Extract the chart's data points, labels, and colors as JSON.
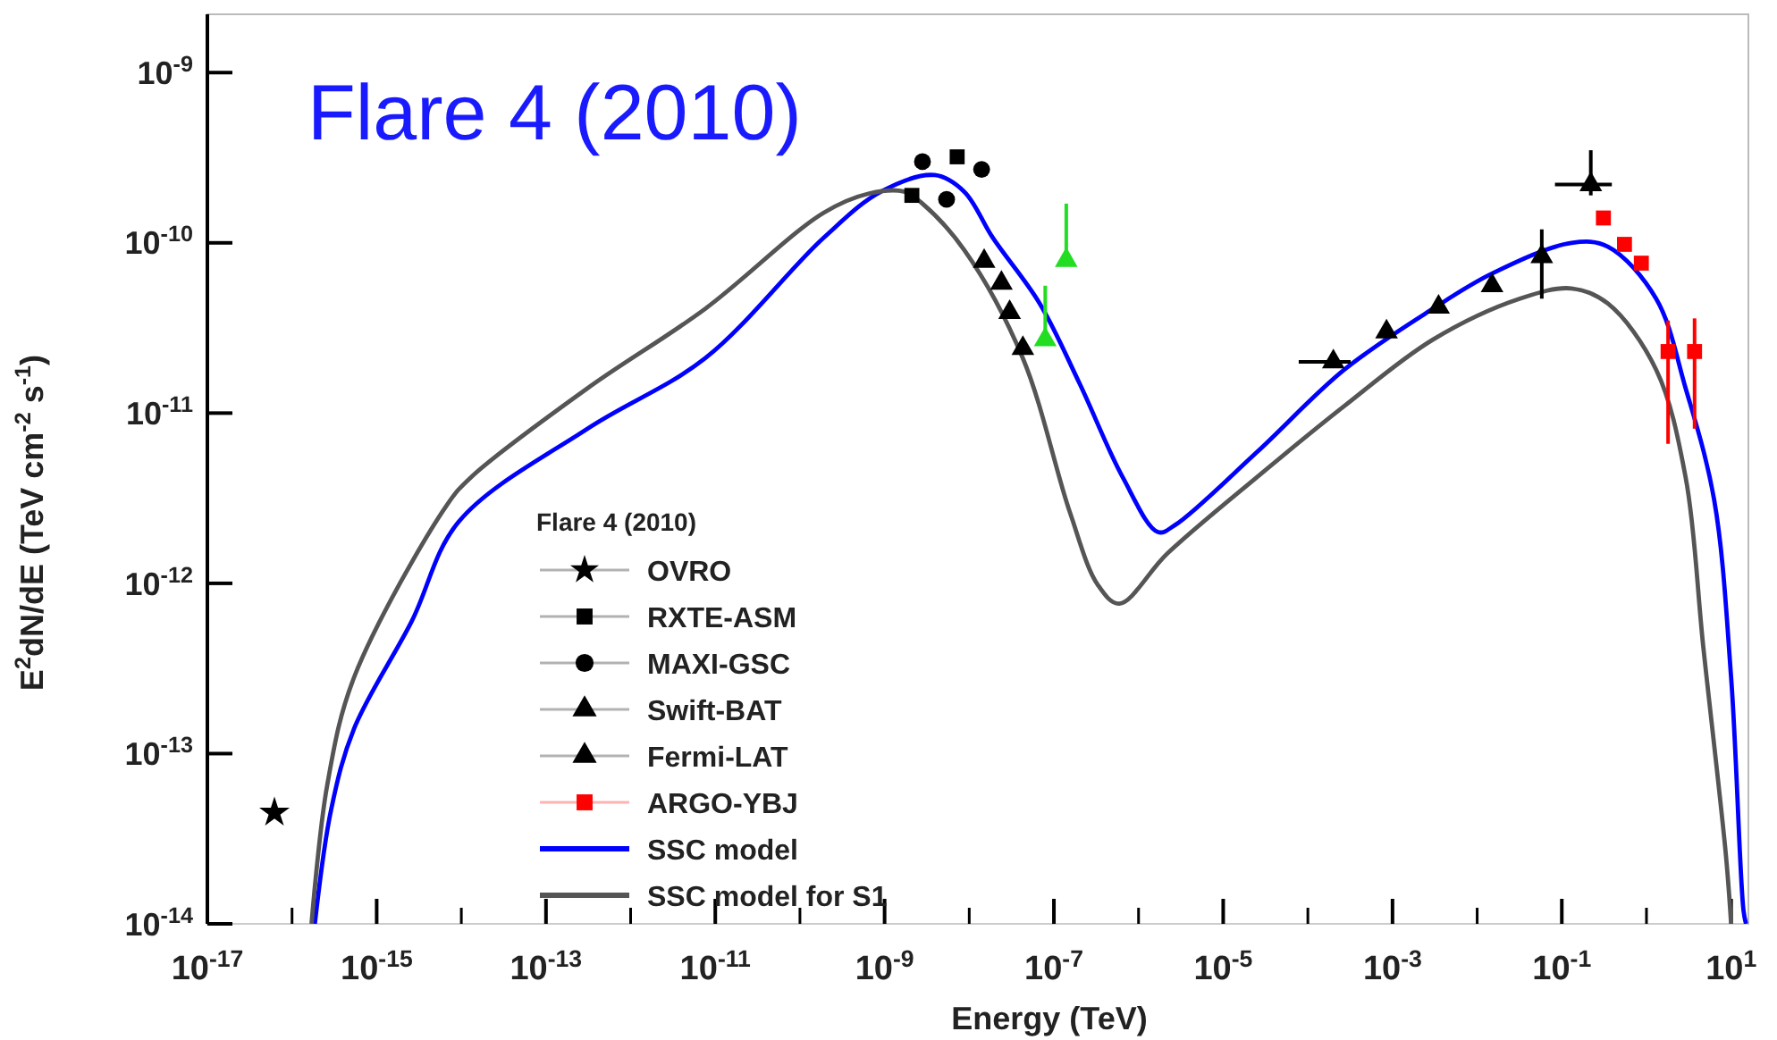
{
  "chart_data": {
    "type": "scatter",
    "title": "Flare 4 (2010)",
    "xlabel": "Energy (TeV)",
    "ylabel": "E$^{2}$dN/dE (TeV cm$^{-2}$ s$^{-1}$)",
    "legend_title": "Flare 4 (2010)",
    "legend": "bottom left",
    "log": "xy",
    "xlim": [
      1e-17,
      16
    ],
    "ylim": [
      1e-14,
      2.2e-09
    ],
    "xticks": [
      {
        "value": 1e-17,
        "label": "10$^{-17}$"
      },
      {
        "value": 1e-16,
        "label": null
      },
      {
        "value": 1e-15,
        "label": "10$^{-15}$"
      },
      {
        "value": 1e-14,
        "label": null
      },
      {
        "value": 1e-13,
        "label": "10$^{-13}$"
      },
      {
        "value": 1e-12,
        "label": null
      },
      {
        "value": 1e-11,
        "label": "10$^{-11}$"
      },
      {
        "value": 1e-10,
        "label": null
      },
      {
        "value": 1e-09,
        "label": "10$^{-9}$"
      },
      {
        "value": 1e-08,
        "label": null
      },
      {
        "value": 1e-07,
        "label": "10$^{-7}$"
      },
      {
        "value": 1e-06,
        "label": null
      },
      {
        "value": 1e-05,
        "label": "10$^{-5}$"
      },
      {
        "value": 0.0001,
        "label": null
      },
      {
        "value": 0.001,
        "label": "10$^{-3}$"
      },
      {
        "value": 0.01,
        "label": null
      },
      {
        "value": 0.1,
        "label": "10$^{-1}$"
      },
      {
        "value": 1,
        "label": null
      },
      {
        "value": 10,
        "label": "10$^{1}$"
      }
    ],
    "yticks": [
      {
        "value": 1e-14,
        "label": "10$^{-14}$"
      },
      {
        "value": 1e-13,
        "label": "10$^{-13}$"
      },
      {
        "value": 1e-12,
        "label": "10$^{-12}$"
      },
      {
        "value": 1e-11,
        "label": "10$^{-11}$"
      },
      {
        "value": 1e-10,
        "label": "10$^{-10}$"
      },
      {
        "value": 1e-09,
        "label": "10$^{-9}$"
      }
    ],
    "series": [
      {
        "name": "OVRO",
        "marker": "star",
        "color": "#000000",
        "x": [
          6.2e-17
        ],
        "values": [
          4.5e-14
        ]
      },
      {
        "name": "RXTE-ASM",
        "marker": "square",
        "color": "#000000",
        "x": [
          2.1e-09,
          7.2e-09
        ],
        "values": [
          1.9e-10,
          3.2e-10
        ]
      },
      {
        "name": "MAXI-GSC",
        "marker": "circle",
        "color": "#000000",
        "x": [
          2.8e-09,
          1.4e-08,
          5.4e-09
        ],
        "values": [
          3e-10,
          2.7e-10,
          1.8e-10
        ]
      },
      {
        "name": "Swift-BAT",
        "marker": "triangle",
        "color": "#000000",
        "x": [
          1.5e-08,
          2.4e-08,
          3e-08,
          4.3e-08
        ],
        "values": [
          7.8e-11,
          5.8e-11,
          3.9e-11,
          2.4e-11
        ]
      },
      {
        "name": "Fermi-LAT",
        "marker": "triangle",
        "color": "#000000",
        "x": [
          0.0002,
          0.00085,
          0.0035,
          0.015,
          0.058,
          0.22
        ],
        "values": [
          2e-11,
          3e-11,
          4.2e-11,
          5.6e-11,
          8.3e-11,
          2.2e-10
        ],
        "errors": [
          null,
          null,
          null,
          null,
          [
            4.7e-11,
            1.2e-10
          ],
          [
            1.9e-10,
            3.5e-10
          ]
        ],
        "xerrors": [
          [
            7.8e-05,
            0.00032
          ],
          null,
          null,
          null,
          null,
          [
            0.083,
            0.39
          ]
        ]
      },
      {
        "name": "ARGO-YBJ",
        "marker": "square",
        "color": "#ff0000",
        "x": [
          0.31,
          0.55,
          0.87,
          1.8,
          3.7
        ],
        "values": [
          1.4e-10,
          9.8e-11,
          7.6e-11,
          2.3e-11,
          2.3e-11
        ],
        "errors": [
          null,
          null,
          null,
          [
            6.6e-12,
            3.5e-11
          ],
          [
            8.1e-12,
            3.6e-11
          ]
        ]
      },
      {
        "marker": "triangle",
        "color": "#22dd22",
        "x": [
          1.4e-07,
          7.9e-08
        ],
        "values": [
          7.9e-11,
          2.7e-11
        ],
        "errors": [
          [
            7.9e-11,
            1.7e-10
          ],
          [
            2.7e-11,
            5.6e-11
          ]
        ]
      },
      {
        "name": "SSC model",
        "type": "line",
        "line_style": "solid",
        "color": "#0000ff",
        "x": [
          1.86e-16,
          2.9e-16,
          5.4e-16,
          2.6e-15,
          9.3e-15,
          3.1e-13,
          7.6e-12,
          1.9e-10,
          9.1e-10,
          3.9e-09,
          8.7e-09,
          1.9e-08,
          6.8e-08,
          2e-07,
          6.5e-07,
          1.7e-06,
          2.7e-06,
          2.5e-05,
          0.00027,
          0.003,
          0.015,
          0.13,
          0.35,
          1.3,
          2.9,
          6.3,
          10,
          14,
          15
        ],
        "values": [
          1e-14,
          4.7e-14,
          1.4e-13,
          6e-13,
          2.3e-12,
          8.1e-12,
          2.1e-11,
          1.07e-10,
          2e-10,
          2.5e-10,
          2e-10,
          1.07e-10,
          4.4e-11,
          1.5e-11,
          4.2e-12,
          2e-12,
          2.2e-12,
          5.9e-12,
          1.8e-11,
          4.1e-11,
          6.6e-11,
          1e-10,
          9.5e-11,
          4.7e-11,
          1.4e-11,
          3.1e-12,
          2.8e-13,
          1.2e-14,
          1e-14
        ]
      },
      {
        "name": "SSC model for S1",
        "type": "line",
        "line_style": "solid",
        "color": "#555555",
        "x": [
          1.7e-16,
          2.6e-16,
          5.4e-16,
          6.8e-15,
          1.3e-14,
          3.1e-13,
          7.6e-12,
          1.9e-10,
          6.6e-10,
          1.7e-09,
          2.8e-09,
          8.7e-09,
          4.3e-08,
          1.55e-07,
          3.3e-07,
          5.9e-07,
          2.2e-06,
          2.5e-05,
          0.00027,
          0.003,
          0.032,
          0.13,
          0.35,
          1.3,
          2.9,
          4.7,
          8.7,
          10
        ],
        "values": [
          1e-14,
          6.5e-14,
          2.8e-13,
          2.9e-12,
          4.2e-12,
          1.4e-11,
          4.1e-11,
          1.5e-10,
          1.95e-10,
          2e-10,
          1.7e-10,
          9.1e-11,
          2.1e-11,
          2.6e-12,
          9.8e-13,
          7.6e-13,
          1.5e-12,
          4.2e-12,
          1.1e-11,
          2.7e-11,
          4.7e-11,
          5.4e-11,
          4.4e-11,
          1.8e-11,
          4.2e-12,
          4.2e-13,
          2.5e-14,
          1e-14
        ]
      }
    ]
  }
}
